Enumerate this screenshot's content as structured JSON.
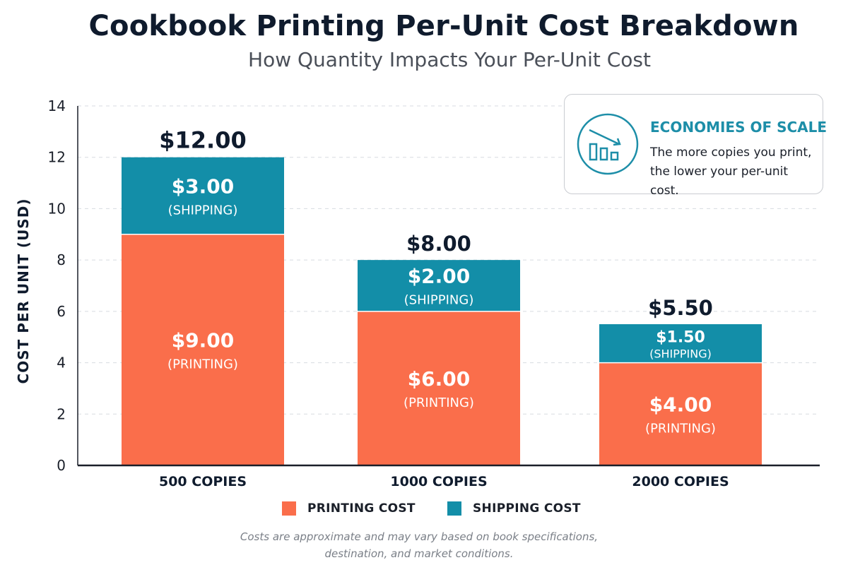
{
  "chart_data": {
    "type": "bar",
    "stacked": true,
    "title": "Cookbook Printing Per-Unit Cost Breakdown",
    "subtitle": "How Quantity Impacts Your Per-Unit Cost",
    "ylabel": "COST PER UNIT (USD)",
    "xlabel": "",
    "ylim": [
      0,
      14
    ],
    "yticks": [
      0,
      2,
      4,
      6,
      8,
      10,
      12,
      14
    ],
    "grid": true,
    "legend_position": "bottom",
    "categories": [
      "500 COPIES",
      "1000 COPIES",
      "2000 COPIES"
    ],
    "series": [
      {
        "name": "PRINTING COST",
        "color": "#fa6e4b",
        "values": [
          9.0,
          6.0,
          4.0
        ],
        "labels": [
          "$9.00",
          "$6.00",
          "$4.00"
        ],
        "sublabel": "(PRINTING)"
      },
      {
        "name": "SHIPPING COST",
        "color": "#138ea8",
        "values": [
          3.0,
          2.0,
          1.5
        ],
        "labels": [
          "$3.00",
          "$2.00",
          "$1.50"
        ],
        "sublabel": "(SHIPPING)"
      }
    ],
    "totals": [
      "$12.00",
      "$8.00",
      "$5.50"
    ]
  },
  "callout": {
    "icon": "chart-trend-down-icon",
    "title": "ECONOMIES OF SCALE",
    "text_line1": "The more copies you print,",
    "text_line2": "the lower your per-unit cost."
  },
  "footnote": {
    "line1": "Costs are approximate and may vary based on book specifications,",
    "line2": "destination, and market conditions."
  },
  "colors": {
    "title": "#0f1b2d",
    "accent": "#1d8ea8",
    "printing": "#fa6e4b",
    "shipping": "#138ea8"
  }
}
